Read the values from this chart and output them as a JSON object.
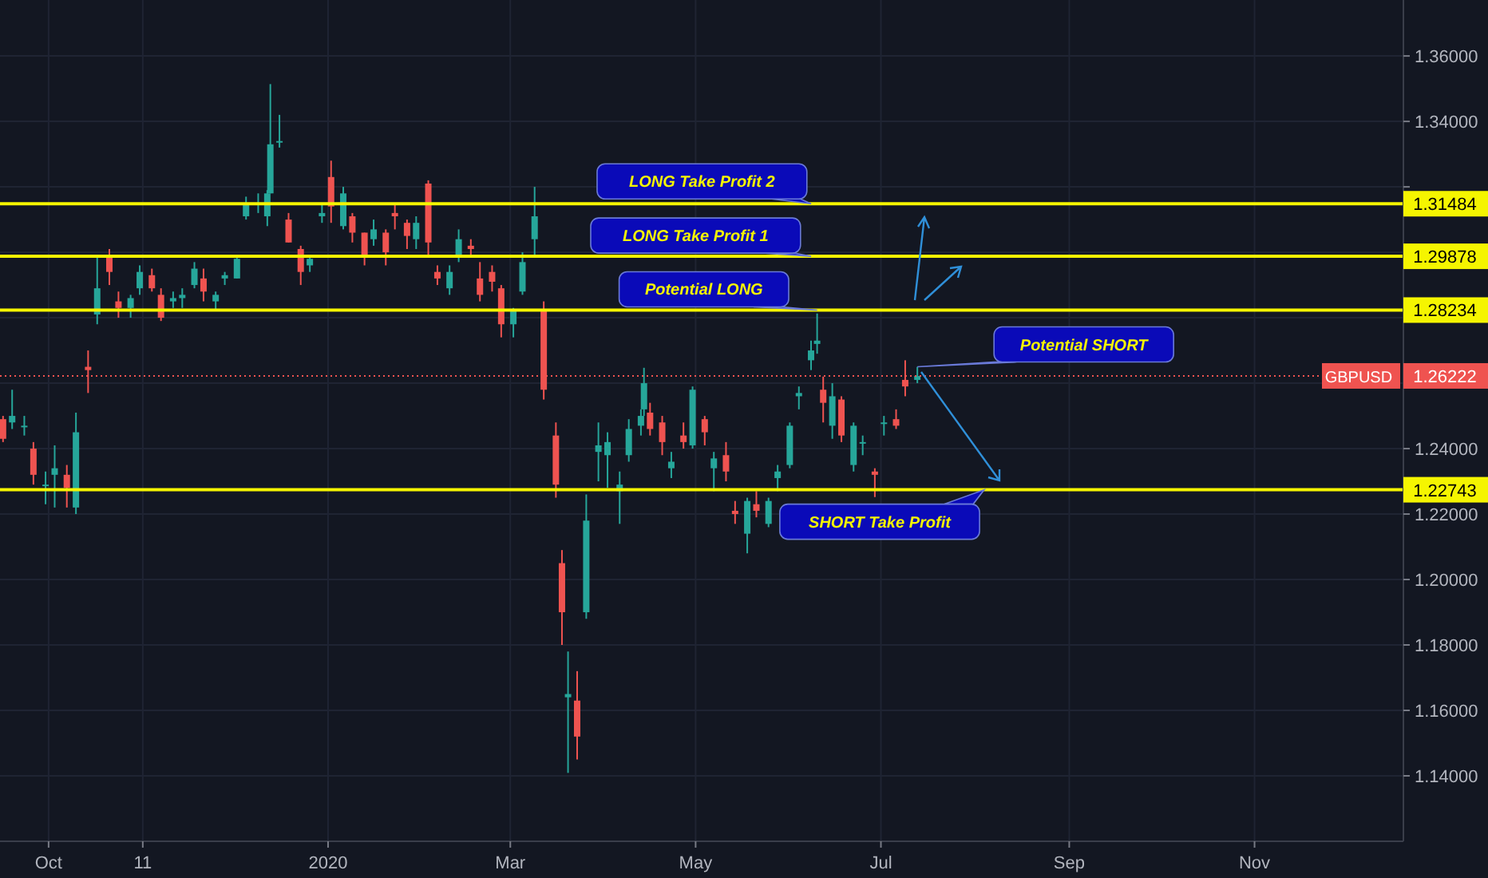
{
  "chart_data": {
    "type": "candlestick",
    "x": [
      "2019-09-16",
      "2019-09-19",
      "2019-09-23",
      "2019-09-26",
      "2019-09-30",
      "2019-10-03",
      "2019-10-07",
      "2019-10-10",
      "2019-10-14",
      "2019-10-17",
      "2019-10-21",
      "2019-10-24",
      "2019-10-28",
      "2019-10-31",
      "2019-11-04",
      "2019-11-07",
      "2019-11-11",
      "2019-11-14",
      "2019-11-18",
      "2019-11-21",
      "2019-11-25",
      "2019-11-28",
      "2019-12-02",
      "2019-12-05",
      "2019-12-09",
      "2019-12-12",
      "2019-12-13",
      "2019-12-16",
      "2019-12-19",
      "2019-12-23",
      "2019-12-26",
      "2019-12-30",
      "2020-01-02",
      "2020-01-06",
      "2020-01-09",
      "2020-01-13",
      "2020-01-16",
      "2020-01-20",
      "2020-01-23",
      "2020-01-27",
      "2020-01-30",
      "2020-02-03",
      "2020-02-06",
      "2020-02-10",
      "2020-02-13",
      "2020-02-17",
      "2020-02-20",
      "2020-02-24",
      "2020-02-27",
      "2020-03-02",
      "2020-03-05",
      "2020-03-09",
      "2020-03-12",
      "2020-03-16",
      "2020-03-18",
      "2020-03-20",
      "2020-03-23",
      "2020-03-26",
      "2020-03-30",
      "2020-04-02",
      "2020-04-06",
      "2020-04-09",
      "2020-04-13",
      "2020-04-14",
      "2020-04-16",
      "2020-04-20",
      "2020-04-23",
      "2020-04-27",
      "2020-04-30",
      "2020-05-04",
      "2020-05-07",
      "2020-05-11",
      "2020-05-14",
      "2020-05-18",
      "2020-05-21",
      "2020-05-25",
      "2020-05-28",
      "2020-06-01",
      "2020-06-04",
      "2020-06-08",
      "2020-06-10",
      "2020-06-12",
      "2020-06-15",
      "2020-06-18",
      "2020-06-22",
      "2020-06-25",
      "2020-06-29",
      "2020-07-02",
      "2020-07-06",
      "2020-07-09",
      "2020-07-13"
    ],
    "ohlc": [
      [
        1.249,
        1.25,
        1.242,
        1.243
      ],
      [
        1.248,
        1.258,
        1.246,
        1.25
      ],
      [
        1.247,
        1.25,
        1.244,
        1.247
      ],
      [
        1.24,
        1.242,
        1.229,
        1.232
      ],
      [
        1.229,
        1.233,
        1.223,
        1.229
      ],
      [
        1.232,
        1.241,
        1.222,
        1.234
      ],
      [
        1.232,
        1.235,
        1.222,
        1.228
      ],
      [
        1.222,
        1.251,
        1.22,
        1.245
      ],
      [
        1.265,
        1.27,
        1.257,
        1.264
      ],
      [
        1.281,
        1.299,
        1.278,
        1.289
      ],
      [
        1.299,
        1.301,
        1.29,
        1.294
      ],
      [
        1.285,
        1.288,
        1.28,
        1.283
      ],
      [
        1.283,
        1.287,
        1.28,
        1.286
      ],
      [
        1.289,
        1.296,
        1.287,
        1.294
      ],
      [
        1.293,
        1.295,
        1.288,
        1.289
      ],
      [
        1.287,
        1.289,
        1.279,
        1.28
      ],
      [
        1.285,
        1.288,
        1.283,
        1.286
      ],
      [
        1.286,
        1.289,
        1.283,
        1.287
      ],
      [
        1.29,
        1.297,
        1.289,
        1.295
      ],
      [
        1.292,
        1.295,
        1.285,
        1.288
      ],
      [
        1.285,
        1.288,
        1.282,
        1.287
      ],
      [
        1.292,
        1.294,
        1.29,
        1.293
      ],
      [
        1.292,
        1.299,
        1.292,
        1.298
      ],
      [
        1.311,
        1.317,
        1.31,
        1.315
      ],
      [
        1.315,
        1.318,
        1.312,
        1.315
      ],
      [
        1.311,
        1.319,
        1.308,
        1.318
      ],
      [
        1.318,
        1.3514,
        1.318,
        1.333
      ],
      [
        1.334,
        1.342,
        1.332,
        1.334
      ],
      [
        1.31,
        1.312,
        1.303,
        1.303
      ],
      [
        1.301,
        1.302,
        1.29,
        1.294
      ],
      [
        1.296,
        1.299,
        1.294,
        1.298
      ],
      [
        1.311,
        1.315,
        1.309,
        1.312
      ],
      [
        1.323,
        1.328,
        1.309,
        1.314
      ],
      [
        1.308,
        1.32,
        1.307,
        1.318
      ],
      [
        1.311,
        1.312,
        1.303,
        1.306
      ],
      [
        1.306,
        1.306,
        1.296,
        1.299
      ],
      [
        1.304,
        1.31,
        1.302,
        1.307
      ],
      [
        1.306,
        1.307,
        1.296,
        1.3
      ],
      [
        1.312,
        1.315,
        1.307,
        1.311
      ],
      [
        1.309,
        1.31,
        1.301,
        1.305
      ],
      [
        1.304,
        1.311,
        1.301,
        1.309
      ],
      [
        1.321,
        1.322,
        1.299,
        1.303
      ],
      [
        1.294,
        1.296,
        1.29,
        1.292
      ],
      [
        1.289,
        1.296,
        1.287,
        1.294
      ],
      [
        1.299,
        1.307,
        1.297,
        1.304
      ],
      [
        1.302,
        1.304,
        1.299,
        1.301
      ],
      [
        1.292,
        1.297,
        1.285,
        1.287
      ],
      [
        1.294,
        1.296,
        1.288,
        1.291
      ],
      [
        1.289,
        1.29,
        1.274,
        1.278
      ],
      [
        1.278,
        1.283,
        1.274,
        1.282
      ],
      [
        1.288,
        1.3,
        1.287,
        1.297
      ],
      [
        1.304,
        1.32,
        1.299,
        1.311
      ],
      [
        1.282,
        1.285,
        1.255,
        1.258
      ],
      [
        1.244,
        1.248,
        1.225,
        1.229
      ],
      [
        1.205,
        1.209,
        1.18,
        1.19
      ],
      [
        1.164,
        1.178,
        1.1409,
        1.165
      ],
      [
        1.163,
        1.172,
        1.145,
        1.152
      ],
      [
        1.19,
        1.226,
        1.188,
        1.218
      ],
      [
        1.239,
        1.248,
        1.23,
        1.241
      ],
      [
        1.238,
        1.245,
        1.228,
        1.242
      ],
      [
        1.227,
        1.233,
        1.217,
        1.229
      ],
      [
        1.238,
        1.249,
        1.236,
        1.246
      ],
      [
        1.247,
        1.252,
        1.244,
        1.25
      ],
      [
        1.252,
        1.2647,
        1.25,
        1.26
      ],
      [
        1.251,
        1.254,
        1.244,
        1.246
      ],
      [
        1.248,
        1.25,
        1.238,
        1.242
      ],
      [
        1.234,
        1.239,
        1.231,
        1.236
      ],
      [
        1.244,
        1.248,
        1.24,
        1.242
      ],
      [
        1.241,
        1.259,
        1.24,
        1.258
      ],
      [
        1.249,
        1.25,
        1.241,
        1.245
      ],
      [
        1.234,
        1.239,
        1.227,
        1.237
      ],
      [
        1.238,
        1.242,
        1.23,
        1.233
      ],
      [
        1.221,
        1.224,
        1.217,
        1.22
      ],
      [
        1.214,
        1.225,
        1.208,
        1.224
      ],
      [
        1.223,
        1.227,
        1.219,
        1.221
      ],
      [
        1.217,
        1.225,
        1.216,
        1.224
      ],
      [
        1.231,
        1.235,
        1.227,
        1.233
      ],
      [
        1.235,
        1.248,
        1.234,
        1.247
      ],
      [
        1.256,
        1.259,
        1.252,
        1.257
      ],
      [
        1.267,
        1.273,
        1.264,
        1.27
      ],
      [
        1.272,
        1.2813,
        1.269,
        1.273
      ],
      [
        1.258,
        1.262,
        1.248,
        1.254
      ],
      [
        1.247,
        1.26,
        1.243,
        1.256
      ],
      [
        1.255,
        1.256,
        1.242,
        1.244
      ],
      [
        1.235,
        1.248,
        1.233,
        1.247
      ],
      [
        1.242,
        1.244,
        1.238,
        1.242
      ],
      [
        1.233,
        1.234,
        1.2252,
        1.232
      ],
      [
        1.248,
        1.25,
        1.244,
        1.248
      ],
      [
        1.249,
        1.252,
        1.246,
        1.247
      ],
      [
        1.261,
        1.267,
        1.256,
        1.259
      ],
      [
        1.261,
        1.265,
        1.26,
        1.2622
      ]
    ],
    "xlim": [
      "2019-09-15",
      "2020-12-20"
    ],
    "xticks": [
      {
        "value": "2019-10-01",
        "label": "Oct"
      },
      {
        "value": "2019-11-01",
        "label": "11"
      },
      {
        "value": "2020-01-01",
        "label": "2020"
      },
      {
        "value": "2020-03-01",
        "label": "Mar"
      },
      {
        "value": "2020-05-01",
        "label": "May"
      },
      {
        "value": "2020-07-01",
        "label": "Jul"
      },
      {
        "value": "2020-09-01",
        "label": "Sep"
      },
      {
        "value": "2020-11-01",
        "label": "Nov"
      }
    ],
    "ylim": [
      1.12,
      1.3771
    ],
    "yticks": [
      {
        "value": 1.14,
        "label": "1.14000"
      },
      {
        "value": 1.16,
        "label": "1.16000"
      },
      {
        "value": 1.18,
        "label": "1.18000"
      },
      {
        "value": 1.2,
        "label": "1.20000"
      },
      {
        "value": 1.22,
        "label": "1.22000"
      },
      {
        "value": 1.24,
        "label": "1.24000"
      },
      {
        "value": 1.26,
        "label": null
      },
      {
        "value": 1.28,
        "label": null
      },
      {
        "value": 1.3,
        "label": null
      },
      {
        "value": 1.32,
        "label": null
      },
      {
        "value": 1.34,
        "label": "1.34000"
      },
      {
        "value": 1.36,
        "label": "1.36000"
      }
    ],
    "grid": true,
    "ref_lines": [
      {
        "axis": "y",
        "value": 1.31484,
        "label": "1.31484",
        "color": "#f5f500"
      },
      {
        "axis": "y",
        "value": 1.29878,
        "label": "1.29878",
        "color": "#f5f500"
      },
      {
        "axis": "y",
        "value": 1.28234,
        "label": "1.28234",
        "color": "#f5f500"
      },
      {
        "axis": "y",
        "value": 1.22743,
        "label": "1.22743",
        "color": "#f5f500"
      },
      {
        "axis": "y",
        "value": 1.26222,
        "label": "GBPUSD 1.26222",
        "color": "#ef5350",
        "line_style": "dotted"
      }
    ],
    "annotations": [
      {
        "text": "LONG Take Profit 2",
        "x": "2020-06-08",
        "y": 1.31484
      },
      {
        "text": "LONG Take Profit 1",
        "x": "2020-06-08",
        "y": 1.29878
      },
      {
        "text": "Potential LONG",
        "x": "2020-06-10",
        "y": 1.28234
      },
      {
        "text": "Potential SHORT",
        "x": "2020-07-13",
        "y": 1.265
      },
      {
        "text": "SHORT Take Profit",
        "x": "2020-08-04",
        "y": 1.22743
      }
    ]
  }
}
